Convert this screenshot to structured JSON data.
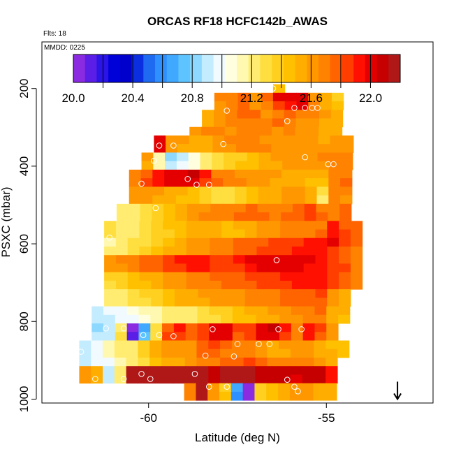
{
  "chart_data": {
    "type": "heatmap",
    "title": "ORCAS RF18 HCFC142b_AWAS",
    "subtitle_flights": "Flts: 18",
    "date_label": "MMDD: 0225",
    "xlabel": "Latitude (deg N)",
    "ylabel": "PSXC (mbar)",
    "xlim": [
      -63,
      -52
    ],
    "ylim": [
      1010,
      80
    ],
    "x_ticks": [
      -60,
      -55
    ],
    "x_tick_labels": [
      "-60",
      "-55"
    ],
    "y_ticks": [
      200,
      400,
      600,
      800,
      1000
    ],
    "y_tick_labels": [
      "200",
      "400",
      "600",
      "800",
      "1000"
    ],
    "colorbar": {
      "range": [
        20.0,
        22.2
      ],
      "tick_values": [
        20.0,
        20.4,
        20.8,
        21.2,
        21.6,
        22.0
      ],
      "tick_labels": [
        "20.0",
        "20.4",
        "20.8",
        "21.2",
        "21.6",
        "22.0"
      ],
      "colors": [
        "#8a2be2",
        "#5a1ee6",
        "#2a14e6",
        "#0000d8",
        "#0000cc",
        "#0a2ee0",
        "#1e6af0",
        "#2e90ff",
        "#40a8ff",
        "#5ec4ff",
        "#8cd8ff",
        "#c4ecff",
        "#f0faff",
        "#ffffe0",
        "#fff8b0",
        "#ffec70",
        "#ffdf40",
        "#ffd020",
        "#ffc000",
        "#ffae00",
        "#ff9800",
        "#ff8200",
        "#ff6400",
        "#ff3e00",
        "#ff1000",
        "#e40000",
        "#c60000",
        "#b01818"
      ]
    },
    "cell_width_deg": 0.33,
    "cell_height_mbar": 22,
    "rows": [
      {
        "y": 200,
        "x0": -56.5,
        "values": [
          21.45
        ]
      },
      {
        "y": 222,
        "x0": -58.15,
        "values": [
          21.68,
          21.68,
          21.75,
          21.62,
          21.78,
          21.98,
          21.99,
          22.02,
          21.6,
          21.5,
          21.4
        ]
      },
      {
        "y": 244,
        "x0": -58.15,
        "values": [
          21.65,
          21.72,
          21.8,
          21.58,
          21.7,
          21.85,
          21.95,
          22.02,
          21.68,
          21.56,
          21.48
        ]
      },
      {
        "y": 266,
        "x0": -58.5,
        "values": [
          21.5,
          21.65,
          21.72,
          21.8,
          21.75,
          21.62,
          21.68,
          21.75,
          21.72,
          21.7,
          21.6,
          21.52
        ]
      },
      {
        "y": 288,
        "x0": -58.5,
        "values": [
          21.55,
          21.6,
          21.7,
          21.68,
          21.72,
          21.7,
          21.75,
          21.7,
          21.62,
          21.58,
          21.55,
          21.52
        ]
      },
      {
        "y": 310,
        "x0": -58.85,
        "values": [
          21.6,
          21.7,
          21.72,
          21.65,
          21.7,
          21.72,
          21.68,
          21.65,
          21.7,
          21.62,
          21.58,
          21.55,
          21.52
        ]
      },
      {
        "y": 332,
        "x0": -59.85,
        "values": [
          22.03,
          21.62,
          21.6,
          21.55,
          21.56,
          21.65,
          21.72,
          21.7,
          21.68,
          21.62,
          21.6,
          21.6,
          21.62,
          21.58,
          21.55,
          21.6,
          21.65
        ]
      },
      {
        "y": 354,
        "x0": -59.85,
        "values": [
          21.98,
          21.58,
          21.55,
          21.52,
          21.5,
          21.6,
          21.65,
          21.68,
          21.7,
          21.66,
          21.62,
          21.58,
          21.6,
          21.62,
          21.58,
          21.6,
          21.62
        ]
      },
      {
        "y": 376,
        "x0": -60.2,
        "values": [
          21.58,
          21.1,
          20.85,
          20.92,
          21.05,
          21.2,
          21.3,
          21.35,
          21.4,
          21.45,
          21.5,
          21.58,
          21.6,
          21.62,
          21.65,
          21.7,
          21.72,
          21.7
        ]
      },
      {
        "y": 398,
        "x0": -60.2,
        "values": [
          21.55,
          21.12,
          20.88,
          20.95,
          21.08,
          21.22,
          21.28,
          21.38,
          21.42,
          21.48,
          21.52,
          21.55,
          21.58,
          21.6,
          21.62,
          21.65,
          21.7,
          21.72
        ]
      },
      {
        "y": 420,
        "x0": -60.55,
        "values": [
          21.72,
          21.8,
          21.92,
          22.02,
          22.03,
          22.05,
          21.9,
          21.72,
          21.7,
          21.65,
          21.62,
          21.6,
          21.58,
          21.55,
          21.55,
          21.52,
          21.5,
          21.72,
          21.68
        ]
      },
      {
        "y": 442,
        "x0": -60.55,
        "values": [
          21.7,
          21.82,
          21.95,
          22.03,
          22.04,
          21.98,
          21.85,
          21.75,
          21.72,
          21.66,
          21.62,
          21.58,
          21.55,
          21.52,
          21.5,
          21.48,
          21.46,
          21.7,
          21.75
        ]
      },
      {
        "y": 464,
        "x0": -60.55,
        "values": [
          21.62,
          21.6,
          21.58,
          21.55,
          21.5,
          21.45,
          21.35,
          21.3,
          21.32,
          21.4,
          21.48,
          21.52,
          21.56,
          21.6,
          21.62,
          21.55,
          21.28,
          21.68,
          21.72
        ]
      },
      {
        "y": 486,
        "x0": -60.55,
        "values": [
          21.6,
          21.58,
          21.55,
          21.52,
          21.48,
          21.42,
          21.35,
          21.3,
          21.32,
          21.38,
          21.45,
          21.5,
          21.55,
          21.6,
          21.62,
          21.52,
          21.25,
          21.7,
          21.65
        ]
      },
      {
        "y": 508,
        "x0": -60.9,
        "values": [
          21.18,
          21.22,
          21.3,
          21.38,
          21.45,
          21.52,
          21.6,
          21.65,
          21.7,
          21.68,
          21.72,
          21.75,
          21.72,
          21.7,
          21.72,
          21.76,
          21.82,
          21.72,
          21.7,
          21.75
        ]
      },
      {
        "y": 530,
        "x0": -60.9,
        "values": [
          21.2,
          21.25,
          21.32,
          21.4,
          21.48,
          21.55,
          21.62,
          21.66,
          21.7,
          21.72,
          21.74,
          21.76,
          21.75,
          21.72,
          21.74,
          21.78,
          21.84,
          21.74,
          21.72,
          21.78
        ]
      },
      {
        "y": 552,
        "x0": -61.25,
        "values": [
          21.3,
          21.25,
          21.22,
          21.3,
          21.36,
          21.42,
          21.48,
          21.5,
          21.55,
          21.52,
          21.48,
          21.5,
          21.55,
          21.62,
          21.65,
          21.68,
          21.7,
          21.72,
          21.72,
          21.92,
          21.78,
          21.75
        ]
      },
      {
        "y": 574,
        "x0": -61.25,
        "values": [
          21.28,
          21.22,
          21.2,
          21.28,
          21.35,
          21.4,
          21.45,
          21.5,
          21.52,
          21.5,
          21.46,
          21.48,
          21.55,
          21.6,
          21.65,
          21.68,
          21.7,
          21.72,
          21.74,
          21.95,
          21.82,
          21.76
        ]
      },
      {
        "y": 596,
        "x0": -61.25,
        "values": [
          21.15,
          21.2,
          21.26,
          21.32,
          21.4,
          21.48,
          21.55,
          21.6,
          21.62,
          21.66,
          21.7,
          21.75,
          21.78,
          21.8,
          21.82,
          21.85,
          21.88,
          21.9,
          21.92,
          21.98,
          21.85,
          21.78
        ]
      },
      {
        "y": 618,
        "x0": -61.25,
        "values": [
          21.18,
          21.22,
          21.28,
          21.35,
          21.42,
          21.5,
          21.56,
          21.62,
          21.64,
          21.68,
          21.72,
          21.76,
          21.8,
          21.82,
          21.84,
          21.86,
          21.9,
          21.92,
          21.95,
          21.82,
          21.8,
          21.7
        ]
      },
      {
        "y": 640,
        "x0": -61.25,
        "values": [
          21.62,
          21.68,
          21.72,
          21.75,
          21.8,
          21.85,
          21.9,
          21.92,
          21.94,
          21.88,
          21.85,
          21.9,
          21.98,
          22.0,
          22.02,
          22.02,
          22.0,
          21.98,
          21.95,
          21.85,
          21.8,
          21.7
        ]
      },
      {
        "y": 662,
        "x0": -61.25,
        "values": [
          21.6,
          21.65,
          21.7,
          21.74,
          21.78,
          21.82,
          21.88,
          21.9,
          21.92,
          21.86,
          21.84,
          21.88,
          21.96,
          22.0,
          22.01,
          22.01,
          21.98,
          21.96,
          21.94,
          21.88,
          21.84,
          21.72
        ]
      },
      {
        "y": 684,
        "x0": -61.25,
        "values": [
          21.35,
          21.4,
          21.45,
          21.5,
          21.55,
          21.6,
          21.65,
          21.7,
          21.72,
          21.75,
          21.78,
          21.8,
          21.82,
          21.85,
          21.88,
          21.9,
          21.92,
          21.94,
          21.96,
          21.85,
          21.75,
          21.7
        ]
      },
      {
        "y": 706,
        "x0": -61.25,
        "values": [
          21.32,
          21.38,
          21.44,
          21.48,
          21.52,
          21.58,
          21.62,
          21.68,
          21.7,
          21.72,
          21.76,
          21.78,
          21.8,
          21.84,
          21.86,
          21.88,
          21.9,
          21.92,
          21.94,
          21.86,
          21.76,
          21.72
        ]
      },
      {
        "y": 728,
        "x0": -61.25,
        "values": [
          21.22,
          21.2,
          21.28,
          21.34,
          21.4,
          21.46,
          21.5,
          21.55,
          21.58,
          21.6,
          21.62,
          21.65,
          21.68,
          21.7,
          21.72,
          21.75,
          21.78,
          21.8,
          21.82,
          21.6,
          21.55
        ]
      },
      {
        "y": 750,
        "x0": -61.25,
        "values": [
          21.2,
          21.18,
          21.26,
          21.32,
          21.38,
          21.44,
          21.5,
          21.54,
          21.56,
          21.58,
          21.6,
          21.64,
          21.66,
          21.68,
          21.7,
          21.74,
          21.76,
          21.78,
          21.8,
          21.58,
          21.52
        ]
      },
      {
        "y": 772,
        "x0": -61.6,
        "values": [
          20.9,
          20.95,
          21.0,
          21.05,
          21.1,
          21.15,
          21.2,
          21.22,
          21.25,
          21.3,
          21.35,
          21.4,
          21.45,
          21.5,
          21.55,
          21.58,
          21.62,
          21.66,
          21.7,
          21.75,
          21.55,
          21.5
        ]
      },
      {
        "y": 794,
        "x0": -61.6,
        "values": [
          20.88,
          20.92,
          20.98,
          21.02,
          21.08,
          21.12,
          21.18,
          21.2,
          21.24,
          21.28,
          21.32,
          21.38,
          21.42,
          21.48,
          21.52,
          21.56,
          21.6,
          21.64,
          21.68,
          21.72,
          21.52,
          21.48
        ]
      },
      {
        "y": 816,
        "x0": -61.6,
        "values": [
          20.85,
          20.9,
          21.25,
          20.05,
          20.7,
          21.3,
          21.8,
          21.9,
          21.78,
          21.85,
          22.0,
          22.03,
          21.82,
          21.85,
          22.02,
          22.05,
          21.9,
          21.7,
          21.95,
          21.82,
          21.6
        ]
      },
      {
        "y": 838,
        "x0": -61.6,
        "values": [
          20.88,
          20.92,
          21.28,
          20.1,
          20.75,
          21.28,
          21.82,
          21.88,
          21.75,
          21.82,
          21.98,
          22.02,
          21.8,
          21.84,
          22.0,
          22.04,
          21.88,
          21.72,
          21.92,
          21.8,
          21.58
        ]
      },
      {
        "y": 860,
        "x0": -61.95,
        "values": [
          20.9,
          21.0,
          21.1,
          21.18,
          21.22,
          21.38,
          21.55,
          21.6,
          21.62,
          21.65,
          21.8,
          21.82,
          21.75,
          21.7,
          21.72,
          21.62,
          21.55,
          21.58,
          21.6,
          21.62,
          21.5,
          21.48,
          21.45
        ]
      },
      {
        "y": 882,
        "x0": -61.95,
        "values": [
          20.88,
          20.98,
          21.12,
          21.2,
          21.25,
          21.4,
          21.52,
          21.58,
          21.6,
          21.64,
          21.78,
          21.8,
          21.72,
          21.68,
          21.7,
          21.6,
          21.52,
          21.56,
          21.58,
          21.6,
          21.52,
          21.5,
          21.46
        ]
      },
      {
        "y": 904,
        "x0": -61.95,
        "values": [
          20.9,
          20.95,
          21.0,
          21.1,
          21.2,
          21.3,
          21.42,
          21.5,
          21.55,
          21.6,
          21.68,
          21.72,
          21.75,
          21.78,
          21.82,
          21.8,
          21.72,
          21.68,
          21.66,
          21.7,
          21.6,
          21.55
        ]
      },
      {
        "y": 926,
        "x0": -61.95,
        "values": [
          21.6,
          21.5,
          20.9,
          21.2,
          22.15,
          22.18,
          22.18,
          22.2,
          22.2,
          22.18,
          22.15,
          22.12,
          22.15,
          22.18,
          22.16,
          22.12,
          22.1,
          22.08,
          22.05,
          22.12,
          22.1,
          21.95
        ]
      },
      {
        "y": 948,
        "x0": -61.95,
        "values": [
          21.58,
          21.52,
          20.88,
          21.22,
          22.14,
          22.17,
          22.18,
          22.19,
          22.2,
          22.17,
          22.14,
          22.12,
          22.14,
          22.17,
          22.15,
          22.1,
          22.09,
          22.07,
          22.04,
          22.1,
          22.08,
          21.92
        ]
      },
      {
        "y": 970,
        "x0": -59.0,
        "values": [
          21.72,
          22.18,
          21.62,
          21.4,
          20.65,
          20.05,
          21.38,
          21.45,
          21.5,
          21.58,
          21.62,
          21.55,
          21.52
        ]
      },
      {
        "y": 992,
        "x0": -59.0,
        "values": [
          21.7,
          22.16,
          21.6,
          21.42,
          20.6,
          20.02,
          21.4,
          21.48,
          21.52,
          21.6,
          21.6,
          21.52,
          21.5
        ]
      }
    ],
    "sample_points": [
      [
        -56.5,
        200
      ],
      [
        -57.8,
        257
      ],
      [
        -55.9,
        250
      ],
      [
        -55.6,
        250
      ],
      [
        -55.4,
        250
      ],
      [
        -55.25,
        250
      ],
      [
        -56.1,
        284
      ],
      [
        -59.3,
        347
      ],
      [
        -59.7,
        347
      ],
      [
        -57.9,
        343
      ],
      [
        -55.6,
        377
      ],
      [
        -59.85,
        386
      ],
      [
        -54.8,
        395
      ],
      [
        -54.95,
        395
      ],
      [
        -58.9,
        433
      ],
      [
        -60.2,
        445
      ],
      [
        -58.65,
        448
      ],
      [
        -58.3,
        448
      ],
      [
        -59.8,
        508
      ],
      [
        -61.1,
        584
      ],
      [
        -56.4,
        642
      ],
      [
        -61.8,
        800
      ],
      [
        -61.2,
        818
      ],
      [
        -60.7,
        818
      ],
      [
        -60.15,
        835
      ],
      [
        -59.7,
        835
      ],
      [
        -59.3,
        838
      ],
      [
        -58.2,
        820
      ],
      [
        -56.35,
        820
      ],
      [
        -55.7,
        820
      ],
      [
        -56.6,
        858
      ],
      [
        -56.9,
        858
      ],
      [
        -57.5,
        858
      ],
      [
        -58.4,
        888
      ],
      [
        -57.6,
        890
      ],
      [
        -61.9,
        878
      ],
      [
        -62.1,
        948
      ],
      [
        -61.5,
        948
      ],
      [
        -60.7,
        948
      ],
      [
        -60.2,
        935
      ],
      [
        -59.95,
        948
      ],
      [
        -58.7,
        935
      ],
      [
        -58.3,
        968
      ],
      [
        -57.8,
        968
      ],
      [
        -56.1,
        950
      ],
      [
        -55.9,
        968
      ],
      [
        -55.8,
        980
      ]
    ],
    "annotations": [
      {
        "type": "arrow",
        "label": "down-arrow",
        "x": -53.0,
        "y_from": 955,
        "y_to": 1000
      }
    ]
  }
}
